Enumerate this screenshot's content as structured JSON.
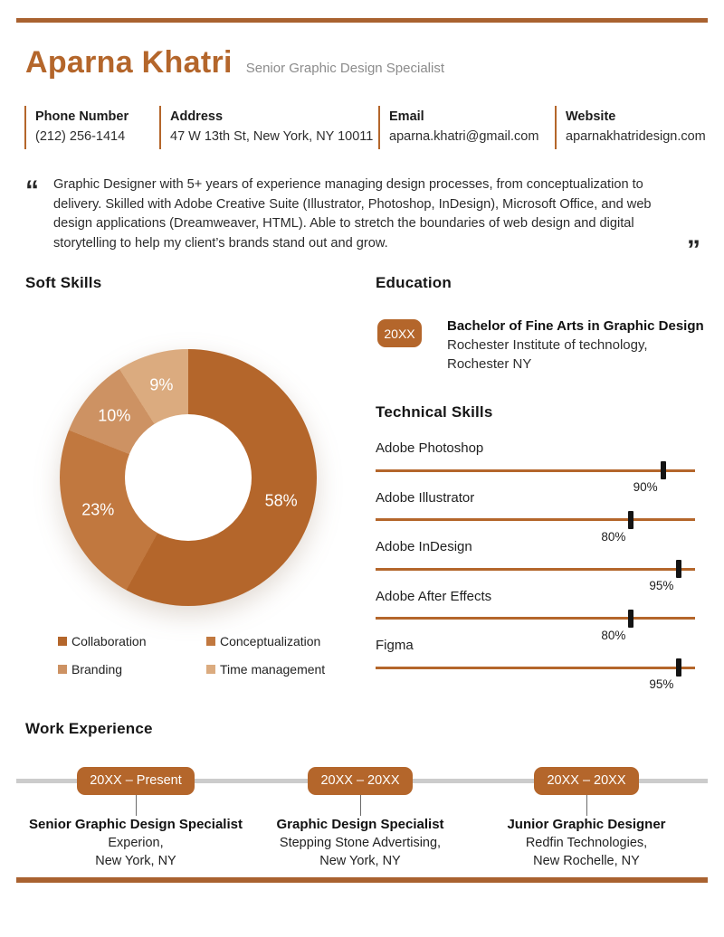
{
  "theme": {
    "primary": "#b4662b",
    "rule_color": "#a96230",
    "timeline_gray": "#cccccc",
    "marker_black": "#141414"
  },
  "header": {
    "name": "Aparna Khatri",
    "title": "Senior Graphic Design Specialist"
  },
  "contact": {
    "items": [
      {
        "label": "Phone Number",
        "value": "(212) 256-1414"
      },
      {
        "label": "Address",
        "value": "47 W 13th St, New York, NY 10011"
      },
      {
        "label": "Email",
        "value": "aparna.khatri@gmail.com"
      },
      {
        "label": "Website",
        "value": "aparnakhatridesign.com"
      }
    ]
  },
  "summary": {
    "open_quote": "“",
    "close_quote": "”",
    "text": "Graphic Designer with 5+ years of experience managing design processes, from conceptualization to delivery. Skilled with Adobe Creative Suite (Illustrator, Photoshop, InDesign), Microsoft Office, and web design applications (Dreamweaver, HTML). Able to stretch the boundaries of web design and digital storytelling to help my client’s brands stand out and grow."
  },
  "sections": {
    "soft_skills_heading": "Soft Skills",
    "education_heading": "Education",
    "technical_skills_heading": "Technical Skills",
    "work_experience_heading": "Work Experience"
  },
  "chart_data": [
    {
      "type": "pie",
      "title": "Soft Skills",
      "categories": [
        "Collaboration",
        "Conceptualization",
        "Branding",
        "Time management"
      ],
      "values": [
        58,
        23,
        10,
        9
      ],
      "labels": [
        "58%",
        "23%",
        "10%",
        "9%"
      ],
      "colors": [
        "#b4662b",
        "#c1783f",
        "#cd9263",
        "#dbab7f"
      ],
      "donut_hole_ratio": 0.49,
      "start_angle_deg": 0,
      "direction": "clockwise",
      "legend_position": "bottom"
    },
    {
      "type": "bar",
      "title": "Technical Skills",
      "categories": [
        "Adobe Photoshop",
        "Adobe Illustrator",
        "Adobe InDesign",
        "Adobe After Effects",
        "Figma"
      ],
      "values": [
        90,
        80,
        95,
        80,
        95
      ],
      "labels": [
        "90%",
        "80%",
        "95%",
        "80%",
        "95%"
      ],
      "xlim": [
        0,
        100
      ],
      "bar_color": "#b4662b",
      "marker_color": "#141414"
    }
  ],
  "education": {
    "items": [
      {
        "year": "20XX",
        "degree": "Bachelor of Fine Arts in Graphic Design",
        "school": "Rochester Institute of technology,",
        "location": "Rochester NY"
      }
    ]
  },
  "work": {
    "items": [
      {
        "period": "20XX – Present",
        "title": "Senior Graphic Design Specialist",
        "company": "Experion,",
        "location": "New York, NY"
      },
      {
        "period": "20XX – 20XX",
        "title": "Graphic Design Specialist",
        "company": "Stepping Stone Advertising,",
        "location": "New York, NY"
      },
      {
        "period": "20XX – 20XX",
        "title": "Junior Graphic Designer",
        "company": "Redfin Technologies,",
        "location": "New Rochelle, NY"
      }
    ]
  }
}
